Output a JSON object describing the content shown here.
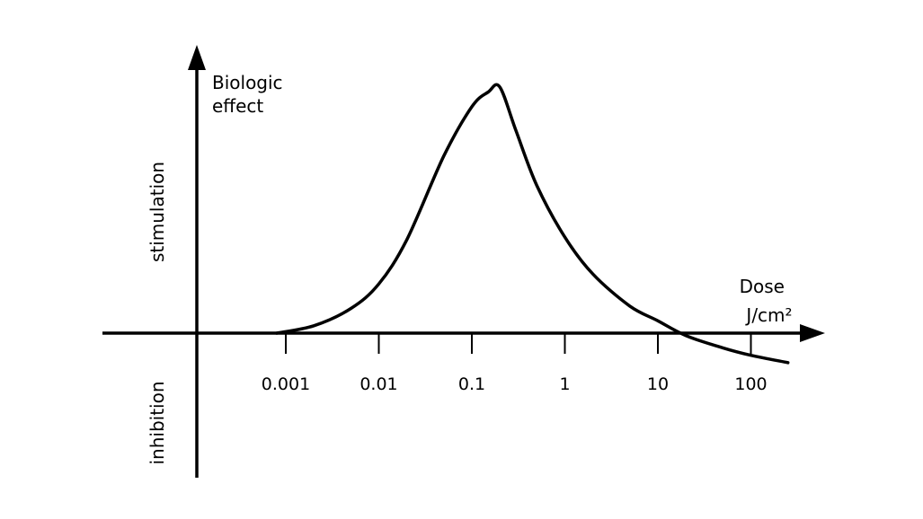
{
  "chart_data": {
    "type": "line",
    "title": "",
    "ylabel": "Biologic effect",
    "ylabel_lines": [
      "Biologic",
      "effect"
    ],
    "xlabel": "Dose J/cm²",
    "xlabel_lines": [
      "Dose",
      "J/cm²"
    ],
    "x_scale": "log",
    "x_ticks": [
      0.001,
      0.01,
      0.1,
      1,
      10,
      100
    ],
    "x_tick_labels": [
      "0.001",
      "0.01",
      "0.1",
      "1",
      "10",
      "100"
    ],
    "region_labels": {
      "positive": "stimulation",
      "negative": "inhibition"
    },
    "grid": false,
    "legend": "none",
    "colors": {
      "line": "#000000",
      "axis": "#000000",
      "background": "#ffffff"
    },
    "series": [
      {
        "x": [
          0.0008,
          0.002,
          0.005,
          0.01,
          0.02,
          0.05,
          0.1,
          0.15,
          0.2,
          0.3,
          0.5,
          1,
          2,
          5,
          10,
          20,
          50,
          100,
          250
        ],
        "y": [
          0.0,
          0.03,
          0.1,
          0.2,
          0.38,
          0.72,
          0.92,
          0.98,
          1.0,
          0.82,
          0.6,
          0.39,
          0.24,
          0.11,
          0.05,
          -0.01,
          -0.06,
          -0.09,
          -0.12
        ]
      }
    ]
  }
}
